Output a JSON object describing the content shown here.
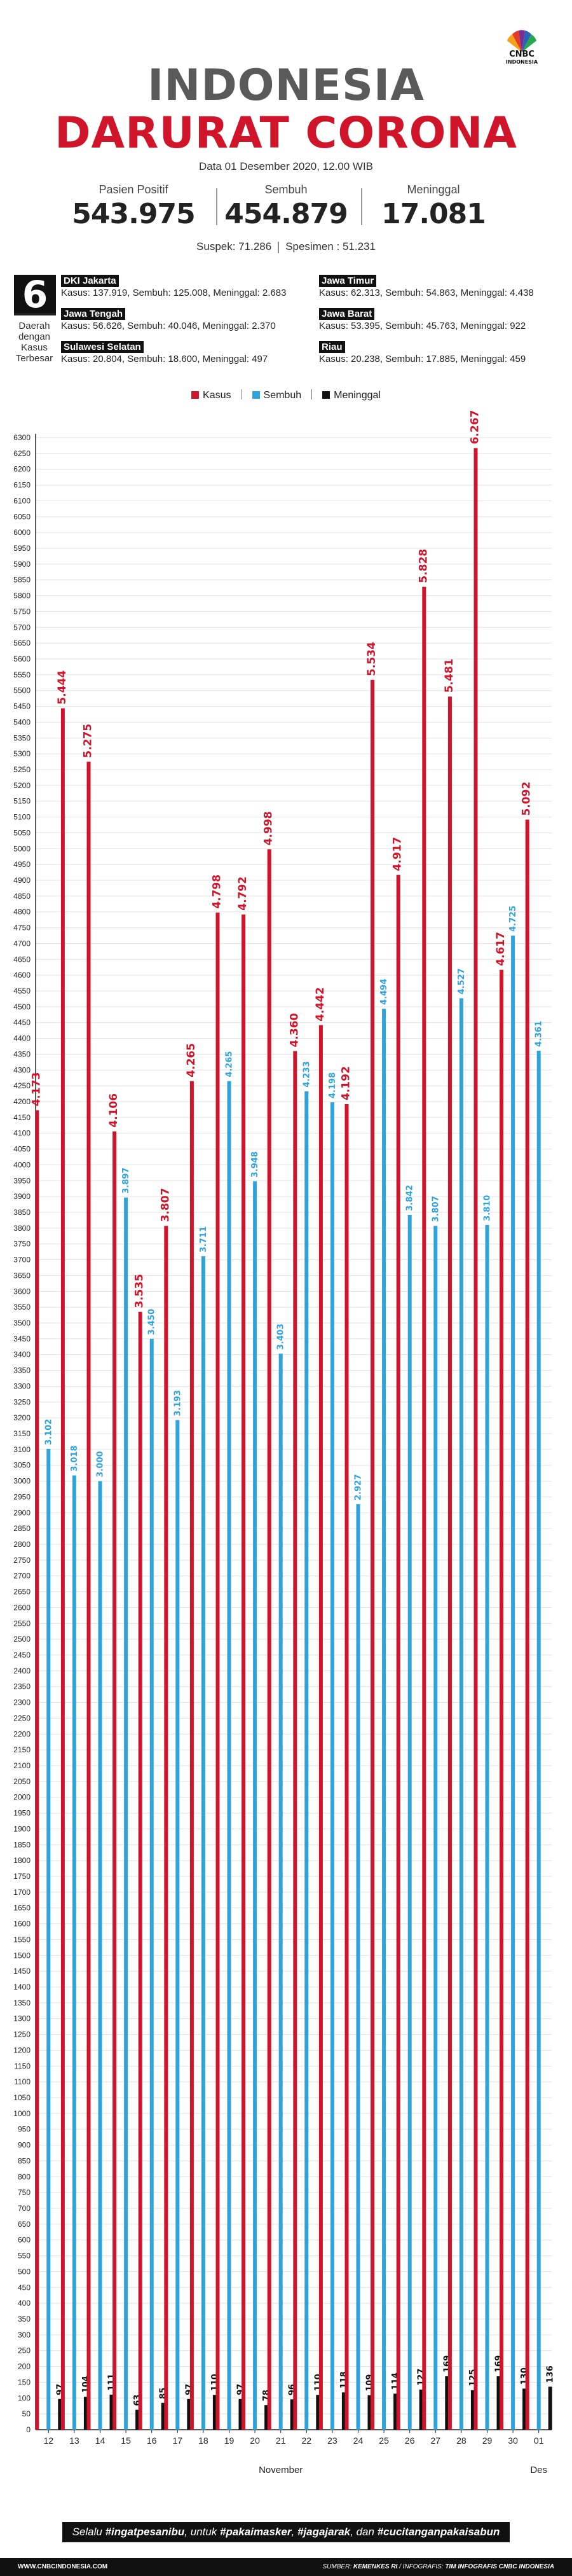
{
  "brand": {
    "logo_text": "CNBC",
    "logo_sub": "INDONESIA"
  },
  "header": {
    "title_line1": "INDONESIA",
    "title_line2": "DARURAT CORONA",
    "date": "Data 01 Desember 2020, 12.00 WIB"
  },
  "stats": [
    {
      "label": "Pasien Positif",
      "value": "543.975"
    },
    {
      "label": "Sembuh",
      "value": "454.879"
    },
    {
      "label": "Meninggal",
      "value": "17.081"
    }
  ],
  "suspek": "Suspek: 71.286",
  "spesimen": "Spesimen : 51.231",
  "top_regions": {
    "count": "6",
    "caption": "Daerah dengan Kasus Terbesar",
    "items": [
      {
        "name": "DKI Jakarta",
        "detail": "Kasus: 137.919, Sembuh: 125.008, Meninggal: 2.683"
      },
      {
        "name": "Jawa Tengah",
        "detail": "Kasus: 56.626, Sembuh: 40.046, Meninggal: 2.370"
      },
      {
        "name": "Sulawesi Selatan",
        "detail": "Kasus: 20.804, Sembuh: 18.600, Meninggal: 497"
      },
      {
        "name": "Jawa Timur",
        "detail": "Kasus: 62.313, Sembuh: 54.863, Meninggal: 4.438"
      },
      {
        "name": "Jawa Barat",
        "detail": "Kasus: 53.395, Sembuh: 45.763, Meninggal: 922"
      },
      {
        "name": "Riau",
        "detail": "Kasus: 20.238, Sembuh: 17.885, Meninggal: 459"
      }
    ]
  },
  "colors": {
    "kasus": "#d0152a",
    "sembuh": "#2fa3dc",
    "meninggal": "#111111",
    "title_gray": "#5a5a5a"
  },
  "chart_data": {
    "type": "bar",
    "categories": [
      "12",
      "13",
      "14",
      "15",
      "16",
      "17",
      "18",
      "19",
      "20",
      "21",
      "22",
      "23",
      "24",
      "25",
      "26",
      "27",
      "28",
      "29",
      "30",
      "01"
    ],
    "month_labels": [
      "November",
      "Des"
    ],
    "ylim": [
      0,
      6300
    ],
    "ytick_step": 50,
    "grid": true,
    "legend_position": "top",
    "series": [
      {
        "name": "Kasus",
        "color": "#d0152a",
        "labels": [
          "4.173",
          "5.444",
          "5.275",
          "4.106",
          "3.535",
          "3.807",
          "4.265",
          "4.798",
          "4.792",
          "4.998",
          "4.360",
          "4.442",
          "4.192",
          "5.534",
          "4.917",
          "5.828",
          "5.481",
          "6.267",
          "4.617",
          "5.092"
        ],
        "values": [
          4173,
          5444,
          5275,
          4106,
          3535,
          3807,
          4265,
          4798,
          4792,
          4998,
          4360,
          4442,
          4192,
          5534,
          4917,
          5828,
          5481,
          6267,
          4617,
          5092
        ]
      },
      {
        "name": "Sembuh",
        "color": "#2fa3dc",
        "labels": [
          "3.102",
          "3.018",
          "3.000",
          "3.897",
          "3.450",
          "3.193",
          "3.711",
          "4.265",
          "3.948",
          "3.403",
          "4.233",
          "4.198",
          "2.927",
          "4.494",
          "3.842",
          "3.807",
          "4.527",
          "3.810",
          "4.725",
          "4.361"
        ],
        "values": [
          3102,
          3018,
          3000,
          3897,
          3450,
          3193,
          3711,
          4265,
          3948,
          3403,
          4233,
          4198,
          2927,
          4494,
          3842,
          3807,
          4527,
          3810,
          4725,
          4361
        ]
      },
      {
        "name": "Meninggal",
        "color": "#111111",
        "labels": [
          "97",
          "104",
          "111",
          "63",
          "85",
          "97",
          "110",
          "97",
          "78",
          "96",
          "110",
          "118",
          "109",
          "114",
          "127",
          "169",
          "125",
          "169",
          "130",
          "136"
        ],
        "values": [
          97,
          104,
          111,
          63,
          85,
          97,
          110,
          97,
          78,
          96,
          110,
          118,
          109,
          114,
          127,
          169,
          125,
          169,
          130,
          136
        ]
      }
    ]
  },
  "slogan": {
    "lead": "Selalu ",
    "p1": "#ingatpesanibu",
    "m1": ", untuk ",
    "p2": "#pakaimasker",
    "m2": ", ",
    "p3": "#jagajarak",
    "m3": ", dan ",
    "p4": "#cucitanganpakaisabun"
  },
  "footer": {
    "website": "WWW.CNBCINDONESIA.COM",
    "sumber_label": "SUMBER: ",
    "sumber": "KEMENKES RI",
    "infografis_label": " / INFOGRAFIS: ",
    "infografis": "TIM INFOGRAFIS CNBC INDONESIA"
  }
}
